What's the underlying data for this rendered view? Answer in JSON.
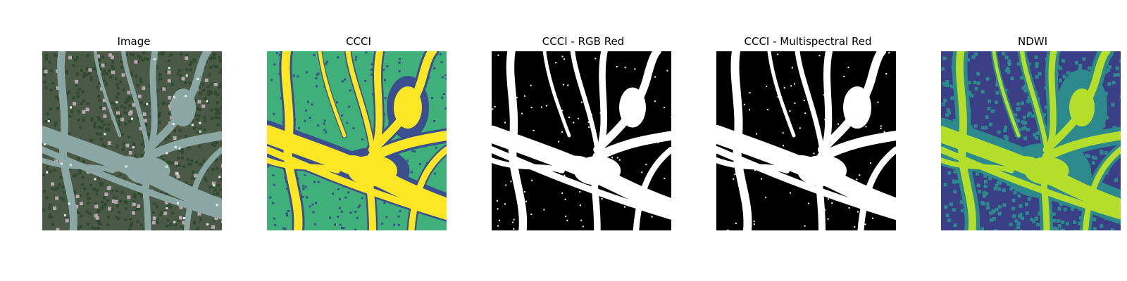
{
  "figure": {
    "panels": [
      {
        "title": "Image",
        "style": "rgb"
      },
      {
        "title": "CCCI",
        "style": "viridis-high"
      },
      {
        "title": "CCCI - RGB Red",
        "style": "binary"
      },
      {
        "title": "CCCI - Multispectral Red",
        "style": "binary"
      },
      {
        "title": "NDWI",
        "style": "viridis-ndwi"
      }
    ]
  },
  "colors": {
    "rgb_background": "#4a5a47",
    "rgb_forest": "#2f4a2e",
    "rgb_channel": "#8aa7a4",
    "rgb_bare": "#b7a8b0",
    "viridis_background": "#3fb07a",
    "viridis_low": "#3b4f8e",
    "viridis_high": "#fde725",
    "ndwi_background": "#3a3f86",
    "ndwi_mid": "#2d8a8c",
    "ndwi_high": "#b5de2b",
    "binary_background": "#000000",
    "binary_water": "#ffffff"
  }
}
